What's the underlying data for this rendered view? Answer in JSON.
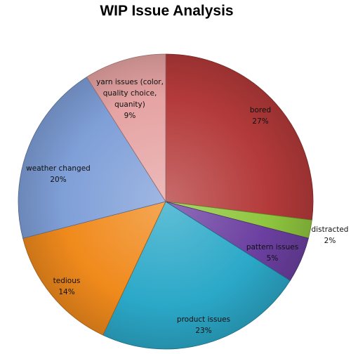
{
  "chart_data": {
    "type": "pie",
    "title": "WIP Issue Analysis",
    "slices": [
      {
        "label": [
          "bored"
        ],
        "value": 27,
        "pct_label": "27%",
        "color": "#B43A3A"
      },
      {
        "label": [
          "distracted"
        ],
        "value": 2,
        "pct_label": "2%",
        "color": "#8FC63E"
      },
      {
        "label": [
          "pattern  issues"
        ],
        "value": 5,
        "pct_label": "5%",
        "color": "#6B3FA0"
      },
      {
        "label": [
          "product issues"
        ],
        "value": 23,
        "pct_label": "23%",
        "color": "#2BA8C8"
      },
      {
        "label": [
          "tedious"
        ],
        "value": 14,
        "pct_label": "14%",
        "color": "#F08A1C"
      },
      {
        "label": [
          "weather  changed"
        ],
        "value": 20,
        "pct_label": "20%",
        "color": "#7F9FD8"
      },
      {
        "label": [
          "yarn issues (color,",
          "quality choice,",
          "quanity)"
        ],
        "value": 9,
        "pct_label": "9%",
        "color": "#E6A3A3"
      }
    ],
    "legend": "none"
  }
}
